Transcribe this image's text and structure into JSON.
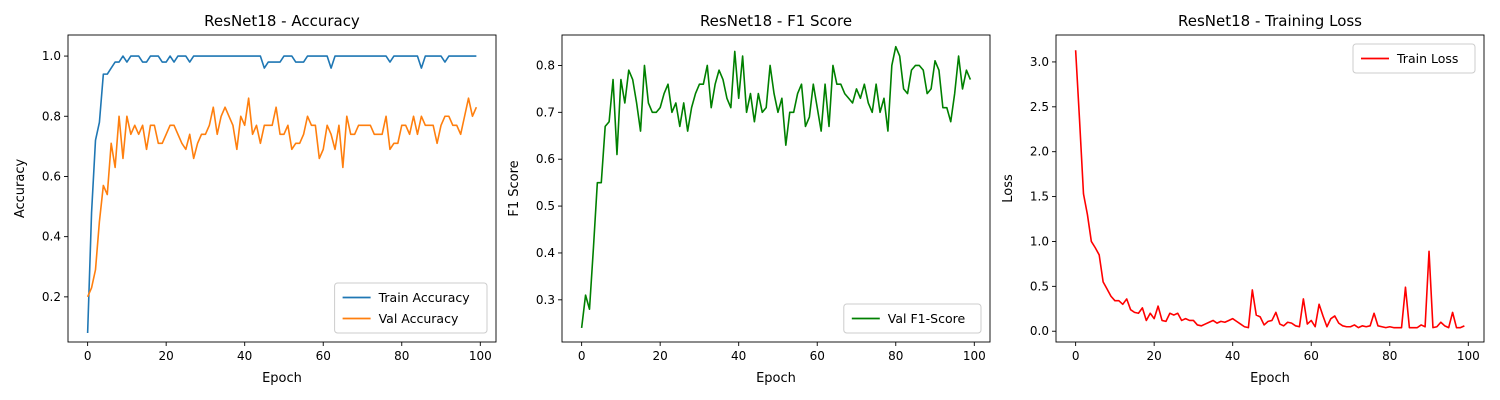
{
  "chart_data": [
    {
      "type": "line",
      "title": "ResNet18 - Accuracy",
      "xlabel": "Epoch",
      "ylabel": "Accuracy",
      "xlim": [
        -5,
        104
      ],
      "ylim": [
        0.05,
        1.07
      ],
      "xticks": [
        0,
        20,
        40,
        60,
        80,
        100
      ],
      "yticks": [
        0.2,
        0.4,
        0.6,
        0.8,
        1.0
      ],
      "ytick_decimals": 1,
      "grid": false,
      "legend_position": "lower-right",
      "x": [
        0,
        1,
        2,
        3,
        4,
        5,
        6,
        7,
        8,
        9,
        10,
        11,
        12,
        13,
        14,
        15,
        16,
        17,
        18,
        19,
        20,
        21,
        22,
        23,
        24,
        25,
        26,
        27,
        28,
        29,
        30,
        31,
        32,
        33,
        34,
        35,
        36,
        37,
        38,
        39,
        40,
        41,
        42,
        43,
        44,
        45,
        46,
        47,
        48,
        49,
        50,
        51,
        52,
        53,
        54,
        55,
        56,
        57,
        58,
        59,
        60,
        61,
        62,
        63,
        64,
        65,
        66,
        67,
        68,
        69,
        70,
        71,
        72,
        73,
        74,
        75,
        76,
        77,
        78,
        79,
        80,
        81,
        82,
        83,
        84,
        85,
        86,
        87,
        88,
        89,
        90,
        91,
        92,
        93,
        94,
        95,
        96,
        97,
        98,
        99
      ],
      "series": [
        {
          "name": "Train Accuracy",
          "color": "#1f77b4",
          "values": [
            0.08,
            0.48,
            0.72,
            0.78,
            0.94,
            0.94,
            0.96,
            0.98,
            0.98,
            1.0,
            0.98,
            1.0,
            1.0,
            1.0,
            0.98,
            0.98,
            1.0,
            1.0,
            1.0,
            0.98,
            0.98,
            1.0,
            0.98,
            1.0,
            1.0,
            1.0,
            0.98,
            1.0,
            1.0,
            1.0,
            1.0,
            1.0,
            1.0,
            1.0,
            1.0,
            1.0,
            1.0,
            1.0,
            1.0,
            1.0,
            1.0,
            1.0,
            1.0,
            1.0,
            1.0,
            0.96,
            0.98,
            0.98,
            0.98,
            0.98,
            1.0,
            1.0,
            1.0,
            0.98,
            0.98,
            0.98,
            1.0,
            1.0,
            1.0,
            1.0,
            1.0,
            1.0,
            0.96,
            1.0,
            1.0,
            1.0,
            1.0,
            1.0,
            1.0,
            1.0,
            1.0,
            1.0,
            1.0,
            1.0,
            1.0,
            1.0,
            1.0,
            0.98,
            1.0,
            1.0,
            1.0,
            1.0,
            1.0,
            1.0,
            1.0,
            0.96,
            1.0,
            1.0,
            1.0,
            1.0,
            1.0,
            0.98,
            1.0,
            1.0,
            1.0,
            1.0,
            1.0,
            1.0,
            1.0,
            1.0
          ]
        },
        {
          "name": "Val Accuracy",
          "color": "#ff7f0e",
          "values": [
            0.2,
            0.23,
            0.29,
            0.45,
            0.57,
            0.54,
            0.71,
            0.63,
            0.8,
            0.66,
            0.8,
            0.74,
            0.77,
            0.74,
            0.77,
            0.69,
            0.77,
            0.77,
            0.71,
            0.71,
            0.74,
            0.77,
            0.77,
            0.74,
            0.71,
            0.69,
            0.74,
            0.66,
            0.71,
            0.74,
            0.74,
            0.77,
            0.83,
            0.74,
            0.8,
            0.83,
            0.8,
            0.77,
            0.69,
            0.8,
            0.77,
            0.86,
            0.74,
            0.77,
            0.71,
            0.77,
            0.77,
            0.77,
            0.83,
            0.74,
            0.74,
            0.77,
            0.69,
            0.71,
            0.71,
            0.74,
            0.8,
            0.77,
            0.77,
            0.66,
            0.69,
            0.77,
            0.74,
            0.69,
            0.77,
            0.63,
            0.8,
            0.74,
            0.74,
            0.77,
            0.77,
            0.77,
            0.77,
            0.74,
            0.74,
            0.74,
            0.8,
            0.69,
            0.71,
            0.71,
            0.77,
            0.77,
            0.74,
            0.8,
            0.74,
            0.8,
            0.77,
            0.77,
            0.77,
            0.71,
            0.77,
            0.8,
            0.8,
            0.77,
            0.77,
            0.74,
            0.8,
            0.86,
            0.8,
            0.83
          ]
        }
      ]
    },
    {
      "type": "line",
      "title": "ResNet18 - F1 Score",
      "xlabel": "Epoch",
      "ylabel": "F1 Score",
      "xlim": [
        -5,
        104
      ],
      "ylim": [
        0.21,
        0.865
      ],
      "xticks": [
        0,
        20,
        40,
        60,
        80,
        100
      ],
      "yticks": [
        0.3,
        0.4,
        0.5,
        0.6,
        0.7,
        0.8
      ],
      "ytick_decimals": 1,
      "grid": false,
      "legend_position": "lower-right",
      "x": [
        0,
        1,
        2,
        3,
        4,
        5,
        6,
        7,
        8,
        9,
        10,
        11,
        12,
        13,
        14,
        15,
        16,
        17,
        18,
        19,
        20,
        21,
        22,
        23,
        24,
        25,
        26,
        27,
        28,
        29,
        30,
        31,
        32,
        33,
        34,
        35,
        36,
        37,
        38,
        39,
        40,
        41,
        42,
        43,
        44,
        45,
        46,
        47,
        48,
        49,
        50,
        51,
        52,
        53,
        54,
        55,
        56,
        57,
        58,
        59,
        60,
        61,
        62,
        63,
        64,
        65,
        66,
        67,
        68,
        69,
        70,
        71,
        72,
        73,
        74,
        75,
        76,
        77,
        78,
        79,
        80,
        81,
        82,
        83,
        84,
        85,
        86,
        87,
        88,
        89,
        90,
        91,
        92,
        93,
        94,
        95,
        96,
        97,
        98,
        99
      ],
      "series": [
        {
          "name": "Val F1-Score",
          "color": "#008000",
          "values": [
            0.24,
            0.31,
            0.28,
            0.41,
            0.55,
            0.55,
            0.67,
            0.68,
            0.77,
            0.61,
            0.77,
            0.72,
            0.79,
            0.77,
            0.72,
            0.66,
            0.8,
            0.72,
            0.7,
            0.7,
            0.71,
            0.74,
            0.76,
            0.7,
            0.72,
            0.67,
            0.72,
            0.66,
            0.71,
            0.74,
            0.76,
            0.76,
            0.8,
            0.71,
            0.76,
            0.79,
            0.77,
            0.73,
            0.71,
            0.83,
            0.73,
            0.82,
            0.7,
            0.74,
            0.68,
            0.74,
            0.7,
            0.71,
            0.8,
            0.74,
            0.7,
            0.73,
            0.63,
            0.7,
            0.7,
            0.74,
            0.76,
            0.67,
            0.69,
            0.76,
            0.71,
            0.66,
            0.76,
            0.67,
            0.8,
            0.76,
            0.76,
            0.74,
            0.73,
            0.72,
            0.75,
            0.73,
            0.76,
            0.72,
            0.7,
            0.76,
            0.7,
            0.73,
            0.66,
            0.8,
            0.84,
            0.82,
            0.75,
            0.74,
            0.79,
            0.8,
            0.8,
            0.79,
            0.74,
            0.75,
            0.81,
            0.79,
            0.71,
            0.71,
            0.68,
            0.74,
            0.82,
            0.75,
            0.79,
            0.77
          ]
        }
      ]
    },
    {
      "type": "line",
      "title": "ResNet18 - Training Loss",
      "xlabel": "Epoch",
      "ylabel": "Loss",
      "xlim": [
        -5,
        104
      ],
      "ylim": [
        -0.12,
        3.3
      ],
      "xticks": [
        0,
        20,
        40,
        60,
        80,
        100
      ],
      "yticks": [
        0.0,
        0.5,
        1.0,
        1.5,
        2.0,
        2.5,
        3.0
      ],
      "ytick_decimals": 1,
      "grid": false,
      "legend_position": "upper-right",
      "x": [
        0,
        1,
        2,
        3,
        4,
        5,
        6,
        7,
        8,
        9,
        10,
        11,
        12,
        13,
        14,
        15,
        16,
        17,
        18,
        19,
        20,
        21,
        22,
        23,
        24,
        25,
        26,
        27,
        28,
        29,
        30,
        31,
        32,
        33,
        34,
        35,
        36,
        37,
        38,
        39,
        40,
        41,
        42,
        43,
        44,
        45,
        46,
        47,
        48,
        49,
        50,
        51,
        52,
        53,
        54,
        55,
        56,
        57,
        58,
        59,
        60,
        61,
        62,
        63,
        64,
        65,
        66,
        67,
        68,
        69,
        70,
        71,
        72,
        73,
        74,
        75,
        76,
        77,
        78,
        79,
        80,
        81,
        82,
        83,
        84,
        85,
        86,
        87,
        88,
        89,
        90,
        91,
        92,
        93,
        94,
        95,
        96,
        97,
        98,
        99
      ],
      "series": [
        {
          "name": "Train Loss",
          "color": "#ff0000",
          "values": [
            3.13,
            2.35,
            1.53,
            1.3,
            1.0,
            0.93,
            0.85,
            0.55,
            0.47,
            0.39,
            0.34,
            0.34,
            0.3,
            0.36,
            0.24,
            0.21,
            0.2,
            0.26,
            0.12,
            0.2,
            0.14,
            0.28,
            0.12,
            0.11,
            0.2,
            0.18,
            0.2,
            0.12,
            0.14,
            0.12,
            0.12,
            0.07,
            0.06,
            0.08,
            0.1,
            0.12,
            0.09,
            0.11,
            0.1,
            0.12,
            0.14,
            0.11,
            0.08,
            0.05,
            0.04,
            0.46,
            0.18,
            0.16,
            0.07,
            0.11,
            0.12,
            0.21,
            0.08,
            0.06,
            0.1,
            0.09,
            0.06,
            0.05,
            0.36,
            0.08,
            0.12,
            0.05,
            0.3,
            0.17,
            0.05,
            0.14,
            0.17,
            0.09,
            0.06,
            0.05,
            0.05,
            0.07,
            0.04,
            0.06,
            0.05,
            0.06,
            0.2,
            0.06,
            0.05,
            0.04,
            0.05,
            0.04,
            0.04,
            0.04,
            0.49,
            0.04,
            0.04,
            0.04,
            0.07,
            0.05,
            0.89,
            0.04,
            0.05,
            0.1,
            0.06,
            0.04,
            0.21,
            0.04,
            0.04,
            0.06
          ]
        }
      ]
    }
  ]
}
